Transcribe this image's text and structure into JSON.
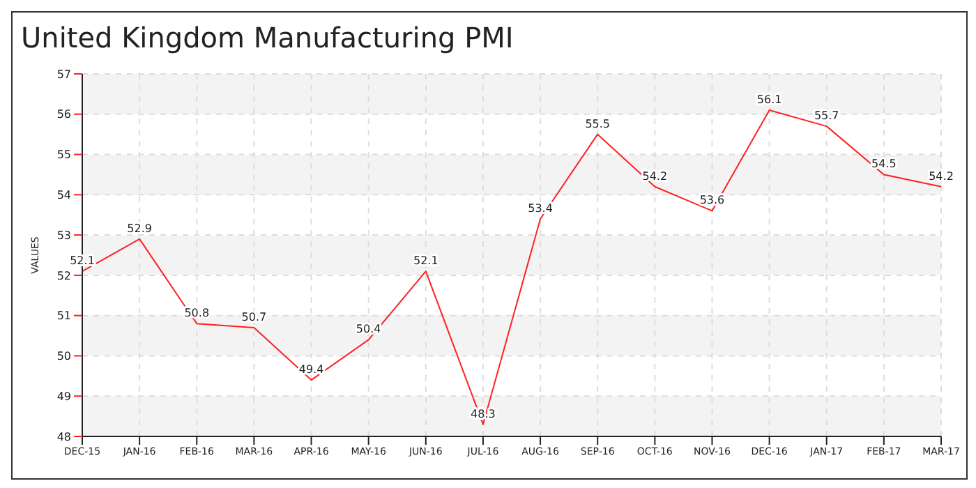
{
  "chart_data": {
    "type": "line",
    "title": "United Kingdom Manufacturing PMI",
    "ylabel": "VALUES",
    "categories": [
      "DEC-15",
      "JAN-16",
      "FEB-16",
      "MAR-16",
      "APR-16",
      "MAY-16",
      "JUN-16",
      "JUL-16",
      "AUG-16",
      "SEP-16",
      "OCT-16",
      "NOV-16",
      "DEC-16",
      "JAN-17",
      "FEB-17",
      "MAR-17"
    ],
    "series": [
      {
        "color": "#ff2020",
        "values": [
          52.1,
          52.9,
          50.8,
          50.7,
          49.4,
          50.4,
          52.1,
          48.3,
          53.4,
          55.5,
          54.2,
          53.6,
          56.1,
          55.7,
          54.5,
          54.2
        ]
      }
    ],
    "ylim": [
      48,
      57
    ],
    "yticks": [
      48,
      49,
      50,
      51,
      52,
      53,
      54,
      55,
      56,
      57
    ],
    "grid": true,
    "data_labels": true,
    "marker": "none",
    "line_style": "solid"
  }
}
